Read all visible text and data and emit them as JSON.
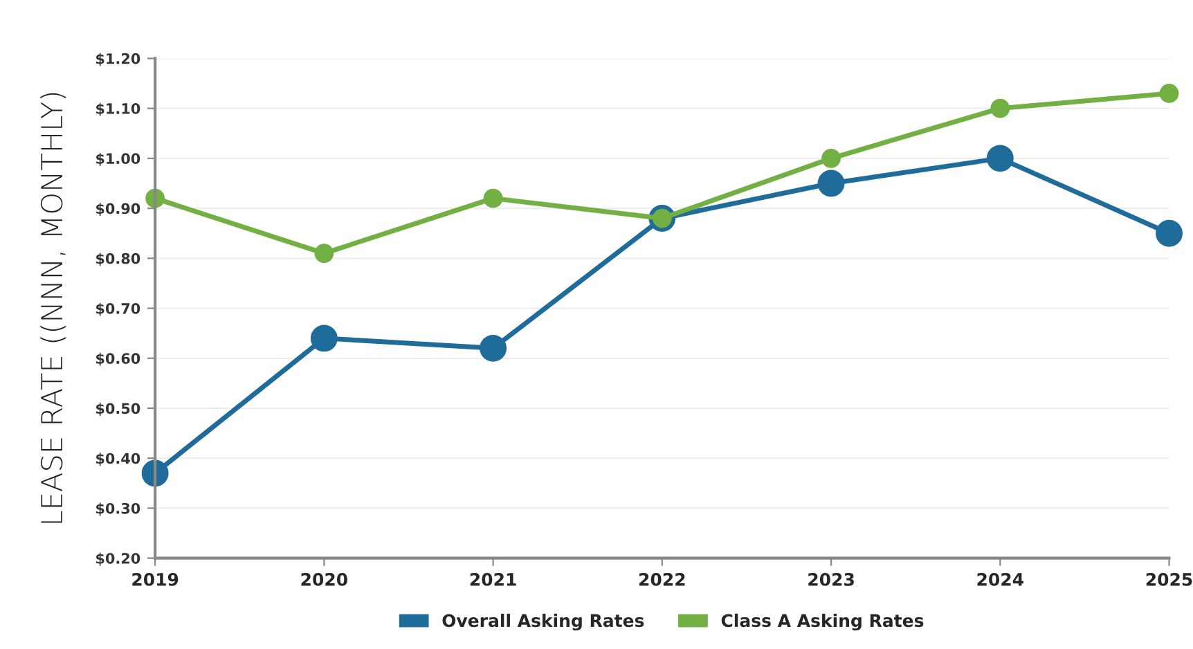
{
  "chart_data": {
    "type": "line",
    "ylabel": "LEASE RATE ((NNN, MONTHLY)",
    "x": [
      2019,
      2020,
      2021,
      2022,
      2023,
      2024,
      2025
    ],
    "series": [
      {
        "name": "Overall Asking Rates",
        "color": "#1f6b9a",
        "values": [
          0.37,
          0.64,
          0.62,
          0.88,
          0.95,
          1.0,
          0.85
        ]
      },
      {
        "name": "Class A Asking Rates",
        "color": "#72b043",
        "values": [
          0.92,
          0.81,
          0.92,
          0.88,
          1.0,
          1.1,
          1.13
        ]
      }
    ],
    "xlim": [
      2019,
      2025
    ],
    "xticks": [
      2019,
      2020,
      2021,
      2022,
      2023,
      2024,
      2025
    ],
    "ylim": [
      0.2,
      1.2
    ],
    "yticks": [
      {
        "value": 0.2,
        "label": "$0.20"
      },
      {
        "value": 0.3,
        "label": "$0.30"
      },
      {
        "value": 0.4,
        "label": "$0.40"
      },
      {
        "value": 0.5,
        "label": "$0.50"
      },
      {
        "value": 0.6,
        "label": "$0.60"
      },
      {
        "value": 0.7,
        "label": "$0.70"
      },
      {
        "value": 0.8,
        "label": "$0.80"
      },
      {
        "value": 0.9,
        "label": "$0.90"
      },
      {
        "value": 1.0,
        "label": "$1.00"
      },
      {
        "value": 1.1,
        "label": "$1.10"
      },
      {
        "value": 1.2,
        "label": "$1.20"
      }
    ],
    "grid": "y",
    "legend": "bottom",
    "marker": "circle",
    "line_style": "solid"
  }
}
